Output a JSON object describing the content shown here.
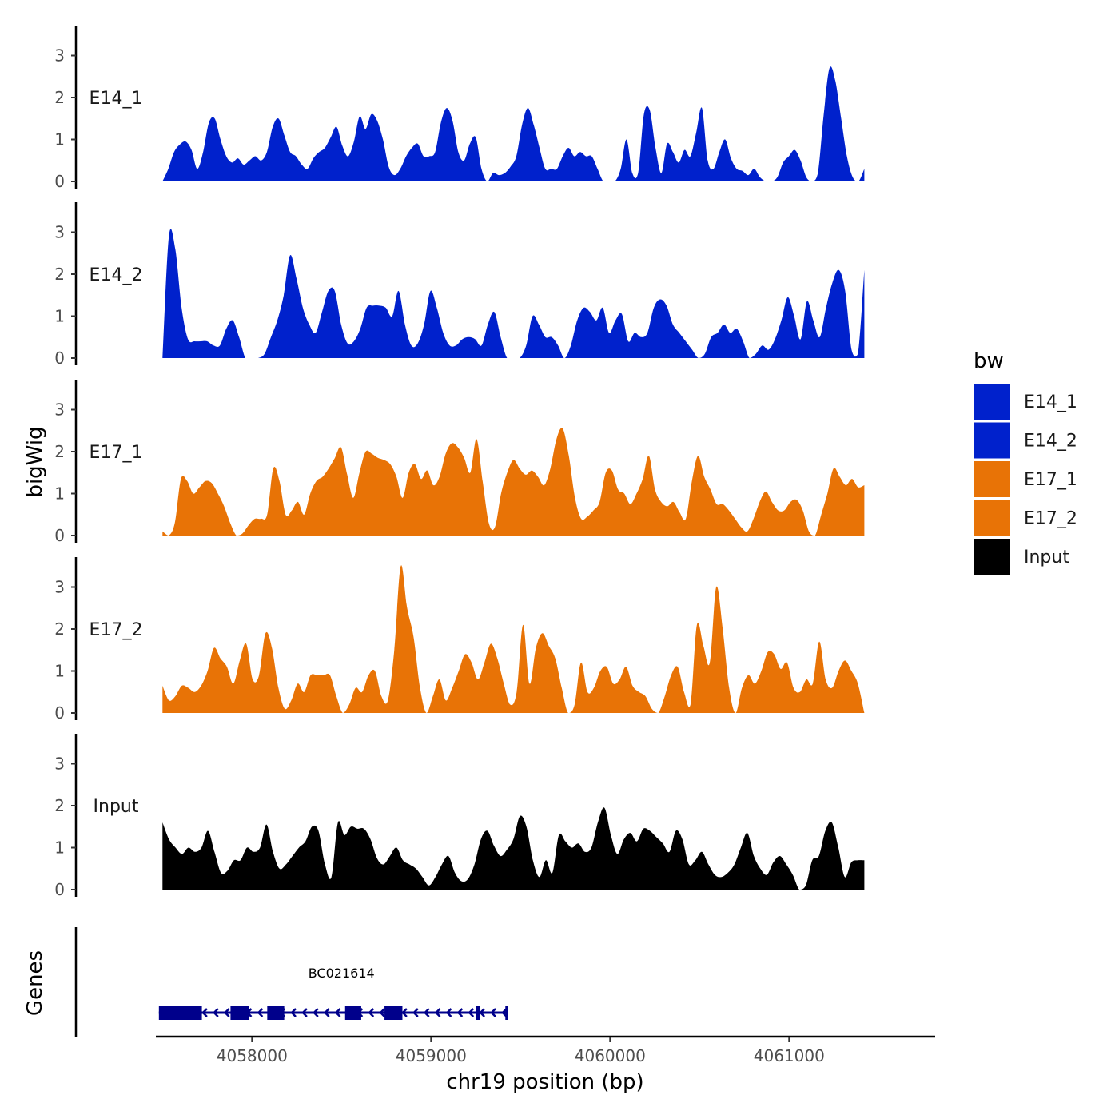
{
  "chart_data": {
    "type": "area",
    "ylabel": "bigWig",
    "xlabel": "chr19 position (bp)",
    "ylim": [
      0,
      3.7
    ],
    "yticks": [
      0,
      1,
      2,
      3
    ],
    "xlim": [
      4057300,
      4061650
    ],
    "xticks": [
      4058000,
      4059000,
      4060000,
      4061000
    ],
    "xtick_labels": [
      "4058000",
      "4059000",
      "4060000",
      "4061000"
    ],
    "x_start": 4057500,
    "x_end": 4061420,
    "legend": {
      "title": "bw",
      "position": "right",
      "entries": [
        {
          "name": "E14_1",
          "color": "#0021CC"
        },
        {
          "name": "E14_2",
          "color": "#0021CC"
        },
        {
          "name": "E17_1",
          "color": "#E87306"
        },
        {
          "name": "E17_2",
          "color": "#E87306"
        },
        {
          "name": "Input",
          "color": "#000000"
        }
      ]
    },
    "series": [
      {
        "name": "E14_1",
        "color": "#0021CC",
        "values": [
          0.0,
          0.3,
          0.7,
          0.88,
          0.95,
          0.75,
          0.3,
          0.7,
          1.4,
          1.5,
          1.0,
          0.6,
          0.45,
          0.55,
          0.4,
          0.5,
          0.6,
          0.5,
          0.7,
          1.3,
          1.5,
          1.1,
          0.7,
          0.6,
          0.4,
          0.3,
          0.55,
          0.7,
          0.8,
          1.05,
          1.3,
          0.85,
          0.6,
          0.95,
          1.55,
          1.25,
          1.6,
          1.45,
          1.0,
          0.35,
          0.15,
          0.3,
          0.6,
          0.8,
          0.9,
          0.6,
          0.6,
          0.7,
          1.4,
          1.75,
          1.45,
          0.7,
          0.5,
          0.9,
          1.05,
          0.3,
          0.0,
          0.2,
          0.15,
          0.2,
          0.35,
          0.6,
          1.35,
          1.75,
          1.35,
          0.8,
          0.3,
          0.3,
          0.3,
          0.6,
          0.8,
          0.6,
          0.7,
          0.6,
          0.6,
          0.3,
          0.0,
          -0.05,
          0.0,
          0.3,
          1.0,
          0.2,
          0.2,
          1.6,
          1.7,
          0.8,
          0.2,
          0.9,
          0.7,
          0.45,
          0.75,
          0.6,
          1.15,
          1.75,
          0.5,
          0.3,
          0.7,
          1.0,
          0.55,
          0.3,
          0.25,
          0.15,
          0.3,
          0.1,
          0.0,
          -0.05,
          0.1,
          0.45,
          0.6,
          0.75,
          0.5,
          0.1,
          0.0,
          0.2,
          1.6,
          2.7,
          2.4,
          1.5,
          0.6,
          0.1,
          0.0,
          0.3
        ]
      },
      {
        "name": "E14_2",
        "color": "#0021CC",
        "values": [
          0.0,
          2.9,
          2.6,
          1.2,
          0.45,
          0.4,
          0.4,
          0.4,
          0.3,
          0.3,
          0.7,
          0.9,
          0.5,
          0.0,
          -0.05,
          -0.05,
          0.1,
          0.5,
          0.9,
          1.5,
          2.45,
          1.9,
          1.2,
          0.8,
          0.6,
          1.1,
          1.6,
          1.6,
          0.8,
          0.35,
          0.4,
          0.7,
          1.2,
          1.25,
          1.25,
          1.2,
          1.0,
          1.6,
          0.8,
          0.3,
          0.35,
          0.8,
          1.6,
          1.2,
          0.6,
          0.3,
          0.3,
          0.45,
          0.5,
          0.45,
          0.3,
          0.8,
          1.1,
          0.5,
          0.0,
          -0.05,
          0.0,
          0.3,
          1.0,
          0.8,
          0.5,
          0.5,
          0.3,
          0.0,
          0.3,
          0.9,
          1.2,
          1.1,
          0.9,
          1.2,
          0.6,
          0.9,
          1.05,
          0.4,
          0.6,
          0.5,
          0.6,
          1.2,
          1.4,
          1.25,
          0.8,
          0.6,
          0.4,
          0.2,
          0.0,
          0.1,
          0.5,
          0.6,
          0.8,
          0.6,
          0.7,
          0.4,
          0.0,
          0.1,
          0.3,
          0.2,
          0.45,
          0.9,
          1.45,
          1.0,
          0.45,
          1.35,
          0.9,
          0.5,
          1.2,
          1.8,
          2.1,
          1.6,
          0.2,
          0.1,
          2.1
        ]
      },
      {
        "name": "E17_1",
        "color": "#E87306",
        "values": [
          0.1,
          0.0,
          0.3,
          1.35,
          1.3,
          1.0,
          1.15,
          1.3,
          1.25,
          1.0,
          0.7,
          0.3,
          0.0,
          0.05,
          0.25,
          0.4,
          0.4,
          0.5,
          1.6,
          1.3,
          0.5,
          0.6,
          0.8,
          0.5,
          1.0,
          1.3,
          1.4,
          1.6,
          1.85,
          2.1,
          1.45,
          0.9,
          1.5,
          2.0,
          1.95,
          1.85,
          1.8,
          1.7,
          1.4,
          0.9,
          1.5,
          1.7,
          1.35,
          1.55,
          1.2,
          1.4,
          1.95,
          2.2,
          2.1,
          1.85,
          1.5,
          2.3,
          1.3,
          0.3,
          0.2,
          1.0,
          1.5,
          1.8,
          1.6,
          1.45,
          1.55,
          1.4,
          1.2,
          1.6,
          2.3,
          2.55,
          1.9,
          0.9,
          0.4,
          0.45,
          0.6,
          0.8,
          1.5,
          1.55,
          1.1,
          1.0,
          0.75,
          1.0,
          1.35,
          1.9,
          1.1,
          0.8,
          0.7,
          0.8,
          0.55,
          0.4,
          1.3,
          1.9,
          1.4,
          1.1,
          0.75,
          0.75,
          0.6,
          0.4,
          0.2,
          0.1,
          0.4,
          0.8,
          1.05,
          0.8,
          0.6,
          0.6,
          0.8,
          0.85,
          0.6,
          0.1,
          0.0,
          0.5,
          1.0,
          1.6,
          1.4,
          1.2,
          1.35,
          1.15,
          1.2
        ]
      },
      {
        "name": "E17_2",
        "color": "#E87306",
        "values": [
          0.65,
          0.3,
          0.4,
          0.65,
          0.6,
          0.5,
          0.65,
          1.0,
          1.55,
          1.3,
          1.1,
          0.7,
          1.25,
          1.65,
          0.8,
          0.9,
          1.9,
          1.55,
          0.6,
          0.1,
          0.3,
          0.7,
          0.5,
          0.9,
          0.9,
          0.9,
          0.9,
          0.4,
          0.0,
          0.2,
          0.6,
          0.5,
          0.9,
          1.0,
          0.4,
          0.3,
          1.5,
          3.5,
          2.5,
          1.8,
          0.6,
          0.0,
          0.4,
          0.8,
          0.3,
          0.6,
          1.0,
          1.4,
          1.2,
          0.8,
          1.2,
          1.65,
          1.3,
          0.7,
          0.2,
          0.5,
          2.1,
          0.7,
          1.55,
          1.9,
          1.6,
          1.3,
          0.6,
          0.0,
          0.2,
          1.2,
          0.5,
          0.6,
          1.0,
          1.1,
          0.7,
          0.8,
          1.1,
          0.65,
          0.5,
          0.4,
          0.1,
          0.0,
          0.4,
          0.9,
          1.1,
          0.5,
          0.2,
          2.1,
          1.6,
          1.2,
          3.0,
          2.0,
          0.6,
          0.0,
          0.6,
          0.9,
          0.7,
          1.0,
          1.45,
          1.4,
          1.05,
          1.2,
          0.6,
          0.5,
          0.8,
          0.7,
          1.7,
          0.8,
          0.6,
          1.0,
          1.25,
          1.0,
          0.7,
          0.0
        ]
      },
      {
        "name": "Input",
        "color": "#000000",
        "values": [
          1.6,
          1.2,
          1.0,
          0.85,
          1.0,
          0.9,
          1.0,
          1.4,
          0.9,
          0.4,
          0.45,
          0.7,
          0.7,
          1.0,
          0.9,
          1.0,
          1.55,
          0.9,
          0.5,
          0.6,
          0.8,
          1.0,
          1.15,
          1.5,
          1.4,
          0.6,
          0.3,
          1.6,
          1.3,
          1.5,
          1.45,
          1.45,
          1.2,
          0.75,
          0.6,
          0.8,
          1.0,
          0.7,
          0.6,
          0.5,
          0.3,
          0.1,
          0.3,
          0.6,
          0.8,
          0.4,
          0.2,
          0.25,
          0.6,
          1.2,
          1.4,
          1.05,
          0.8,
          0.95,
          1.2,
          1.75,
          1.5,
          0.7,
          0.3,
          0.7,
          0.4,
          1.3,
          1.15,
          1.0,
          1.1,
          0.9,
          1.0,
          1.6,
          1.95,
          1.3,
          0.85,
          1.2,
          1.35,
          1.15,
          1.45,
          1.4,
          1.25,
          1.1,
          0.9,
          1.4,
          1.2,
          0.6,
          0.7,
          0.9,
          0.6,
          0.35,
          0.3,
          0.4,
          0.6,
          1.0,
          1.35,
          0.8,
          0.5,
          0.35,
          0.65,
          0.8,
          0.6,
          0.35,
          0.0,
          0.1,
          0.7,
          0.8,
          1.4,
          1.6,
          1.0,
          0.3,
          0.65,
          0.7,
          0.7
        ]
      }
    ],
    "gene_track": {
      "ylabel": "Genes",
      "gene_name": "BC021614",
      "color": "#00008B",
      "start": 4057480,
      "end": 4059430,
      "strand": "-",
      "exons": [
        {
          "start": 4057480,
          "end": 4057720
        },
        {
          "start": 4057880,
          "end": 4057985
        },
        {
          "start": 4058085,
          "end": 4058180
        },
        {
          "start": 4058520,
          "end": 4058610
        },
        {
          "start": 4058740,
          "end": 4058840
        },
        {
          "start": 4059250,
          "end": 4059275
        },
        {
          "start": 4059415,
          "end": 4059430
        }
      ]
    }
  }
}
